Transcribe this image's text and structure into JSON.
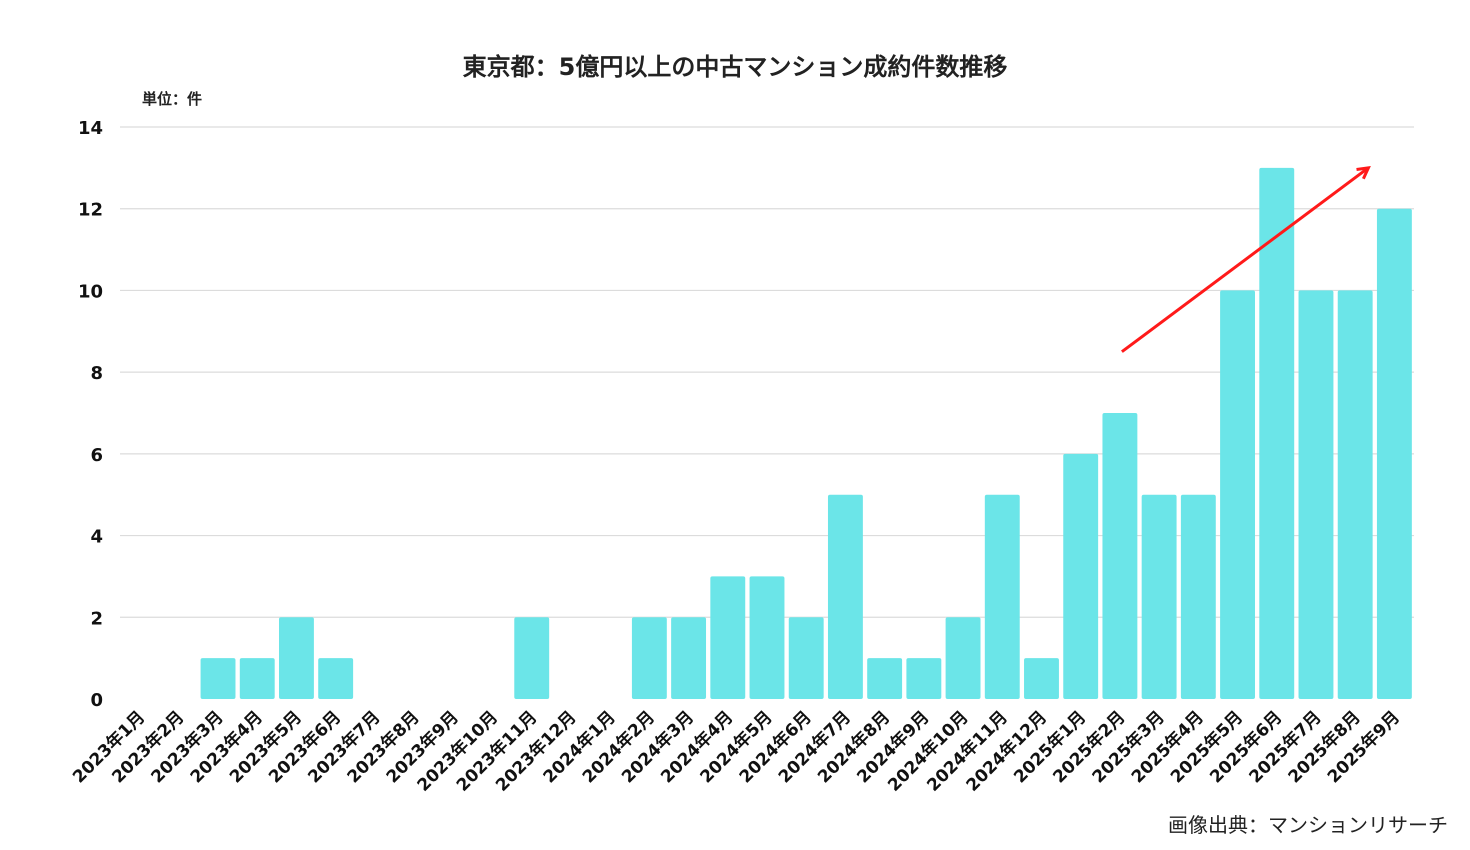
{
  "chart_data": {
    "type": "bar",
    "title": "東京都：5億円以上の中古マンション成約件数推移",
    "unit_label": "単位：件",
    "source": "画像出典：マンションリサーチ",
    "categories": [
      "2023年1月",
      "2023年2月",
      "2023年3月",
      "2023年4月",
      "2023年5月",
      "2023年6月",
      "2023年7月",
      "2023年8月",
      "2023年9月",
      "2023年10月",
      "2023年11月",
      "2023年12月",
      "2024年1月",
      "2024年2月",
      "2024年3月",
      "2024年4月",
      "2024年5月",
      "2024年6月",
      "2024年7月",
      "2024年8月",
      "2024年9月",
      "2024年10月",
      "2024年11月",
      "2024年12月",
      "2025年1月",
      "2025年2月",
      "2025年3月",
      "2025年4月",
      "2025年5月",
      "2025年6月",
      "2025年7月",
      "2025年8月",
      "2025年9月"
    ],
    "values": [
      0,
      0,
      1,
      1,
      2,
      1,
      0,
      0,
      0,
      0,
      2,
      0,
      0,
      2,
      2,
      3,
      3,
      2,
      5,
      1,
      1,
      2,
      5,
      1,
      6,
      7,
      5,
      5,
      10,
      13,
      10,
      10,
      12
    ],
    "ylim": [
      0,
      14
    ],
    "yticks": [
      "0",
      "2",
      "4",
      "6",
      "8",
      "10",
      "12",
      "14"
    ],
    "grid": true,
    "bar_color": "#6be5e8",
    "annotation": {
      "type": "trend-arrow",
      "color": "#ff1a1a",
      "from": [
        "2025年2月",
        8.5
      ],
      "to": [
        "2025年9月",
        13
      ]
    }
  }
}
